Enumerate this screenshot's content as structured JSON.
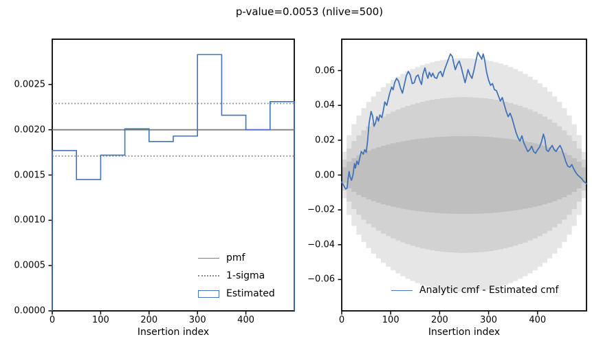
{
  "title": "p-value=0.0053 (nlive=500)",
  "colors": {
    "line_blue": "#4273b8",
    "pmf_gray": "#7f7f7f",
    "sigma_dotted_gray": "#8a8a8a",
    "band_1sigma": "#bfbfbf",
    "band_2sigma": "#d2d2d2",
    "band_3sigma": "#e6e6e6",
    "spine_black": "#000000"
  },
  "chart_data": [
    {
      "type": "bar",
      "subtype": "step-histogram",
      "title": "",
      "xlabel": "Insertion index",
      "ylabel": "",
      "xlim": [
        0,
        500
      ],
      "ylim": [
        0,
        0.003
      ],
      "grid": false,
      "xticks": [
        0,
        100,
        200,
        300,
        400
      ],
      "ytick_values": [
        0,
        0.0005,
        0.001,
        0.0015,
        0.002,
        0.0025
      ],
      "ytick_labels": [
        "0.0000",
        "0.0005",
        "0.0010",
        "0.0015",
        "0.0020",
        "0.0025"
      ],
      "bin_edges": [
        0,
        50,
        100,
        150,
        200,
        250,
        300,
        350,
        400,
        450,
        500
      ],
      "bin_values": [
        0.00177,
        0.00145,
        0.00172,
        0.00201,
        0.00187,
        0.00193,
        0.00283,
        0.00216,
        0.002,
        0.00231
      ],
      "pmf_value": 0.002,
      "sigma_upper": 0.00229,
      "sigma_lower": 0.00171,
      "legend_position": "lower right",
      "legend": [
        {
          "label": "pmf",
          "style": "solid-gray"
        },
        {
          "label": "1-sigma",
          "style": "dotted-gray"
        },
        {
          "label": "Estimated",
          "style": "blue-rect"
        }
      ]
    },
    {
      "type": "line",
      "title": "",
      "xlabel": "Insertion index",
      "ylabel": "",
      "xlim": [
        0,
        500
      ],
      "ylim": [
        -0.078,
        0.078
      ],
      "grid": false,
      "xticks": [
        0,
        100,
        200,
        300,
        400
      ],
      "ytick_values": [
        -0.06,
        -0.04,
        -0.02,
        0.0,
        0.02,
        0.04,
        0.06
      ],
      "ytick_labels": [
        "−0.06",
        "−0.04",
        "−0.02",
        "0.00",
        "0.02",
        "0.04",
        "0.06"
      ],
      "bands": {
        "description": "stepped shaded sigma envelopes k*sqrt(t*(1-t)/nlive), t=x/500",
        "nlive": 500,
        "k_levels": [
          3,
          2,
          1
        ],
        "x_step": 10,
        "max_values": {
          "1sigma": 0.0224,
          "2sigma": 0.0447,
          "3sigma": 0.0671
        }
      },
      "legend_position": "lower center",
      "series": [
        {
          "name": "Analytic cmf - Estimated cmf",
          "points": [
            [
              0,
              -0.004
            ],
            [
              4,
              -0.006
            ],
            [
              8,
              -0.008
            ],
            [
              11,
              -0.0075
            ],
            [
              13,
              -0.002
            ],
            [
              15,
              0.002
            ],
            [
              17,
              -0.001
            ],
            [
              20,
              -0.003
            ],
            [
              23,
              0.0
            ],
            [
              26,
              0.0065
            ],
            [
              28,
              0.004
            ],
            [
              31,
              0.008
            ],
            [
              34,
              0.006
            ],
            [
              37,
              0.01
            ],
            [
              40,
              0.0135
            ],
            [
              44,
              0.012
            ],
            [
              47,
              0.0145
            ],
            [
              50,
              0.013
            ],
            [
              53,
              0.02
            ],
            [
              56,
              0.03
            ],
            [
              60,
              0.0365
            ],
            [
              63,
              0.034
            ],
            [
              66,
              0.028
            ],
            [
              69,
              0.03
            ],
            [
              72,
              0.0335
            ],
            [
              75,
              0.031
            ],
            [
              78,
              0.0345
            ],
            [
              82,
              0.033
            ],
            [
              85,
              0.037
            ],
            [
              88,
              0.042
            ],
            [
              92,
              0.04
            ],
            [
              95,
              0.0435
            ],
            [
              98,
              0.047
            ],
            [
              102,
              0.0505
            ],
            [
              105,
              0.049
            ],
            [
              108,
              0.053
            ],
            [
              112,
              0.0555
            ],
            [
              116,
              0.054
            ],
            [
              120,
              0.05
            ],
            [
              124,
              0.047
            ],
            [
              128,
              0.052
            ],
            [
              132,
              0.057
            ],
            [
              136,
              0.0595
            ],
            [
              140,
              0.0575
            ],
            [
              144,
              0.0525
            ],
            [
              148,
              0.053
            ],
            [
              152,
              0.0565
            ],
            [
              156,
              0.0575
            ],
            [
              160,
              0.054
            ],
            [
              163,
              0.052
            ],
            [
              166,
              0.058
            ],
            [
              170,
              0.0615
            ],
            [
              173,
              0.058
            ],
            [
              176,
              0.0555
            ],
            [
              179,
              0.059
            ],
            [
              183,
              0.0565
            ],
            [
              186,
              0.0585
            ],
            [
              190,
              0.056
            ],
            [
              194,
              0.0555
            ],
            [
              198,
              0.0585
            ],
            [
              202,
              0.0595
            ],
            [
              206,
              0.0565
            ],
            [
              210,
              0.0605
            ],
            [
              214,
              0.0635
            ],
            [
              218,
              0.0665
            ],
            [
              222,
              0.0695
            ],
            [
              226,
              0.068
            ],
            [
              229,
              0.064
            ],
            [
              232,
              0.0605
            ],
            [
              236,
              0.0635
            ],
            [
              240,
              0.0655
            ],
            [
              244,
              0.062
            ],
            [
              248,
              0.0575
            ],
            [
              252,
              0.053
            ],
            [
              255,
              0.0565
            ],
            [
              258,
              0.0605
            ],
            [
              262,
              0.0575
            ],
            [
              266,
              0.0555
            ],
            [
              270,
              0.06
            ],
            [
              274,
              0.0655
            ],
            [
              278,
              0.0705
            ],
            [
              286,
              0.0665
            ],
            [
              289,
              0.0695
            ],
            [
              292,
              0.066
            ],
            [
              296,
              0.059
            ],
            [
              300,
              0.0545
            ],
            [
              304,
              0.0515
            ],
            [
              308,
              0.0525
            ],
            [
              312,
              0.049
            ],
            [
              316,
              0.0485
            ],
            [
              320,
              0.0455
            ],
            [
              324,
              0.0425
            ],
            [
              328,
              0.0445
            ],
            [
              332,
              0.0405
            ],
            [
              336,
              0.0365
            ],
            [
              340,
              0.0335
            ],
            [
              344,
              0.0355
            ],
            [
              348,
              0.0325
            ],
            [
              352,
              0.0285
            ],
            [
              356,
              0.0245
            ],
            [
              360,
              0.0215
            ],
            [
              364,
              0.0195
            ],
            [
              368,
              0.0225
            ],
            [
              372,
              0.0185
            ],
            [
              376,
              0.016
            ],
            [
              380,
              0.0135
            ],
            [
              384,
              0.0145
            ],
            [
              388,
              0.0165
            ],
            [
              392,
              0.0135
            ],
            [
              396,
              0.0125
            ],
            [
              400,
              0.0145
            ],
            [
              404,
              0.016
            ],
            [
              408,
              0.019
            ],
            [
              412,
              0.0235
            ],
            [
              415,
              0.0205
            ],
            [
              418,
              0.0145
            ],
            [
              422,
              0.0135
            ],
            [
              426,
              0.0155
            ],
            [
              430,
              0.017
            ],
            [
              434,
              0.0145
            ],
            [
              438,
              0.0135
            ],
            [
              442,
              0.0155
            ],
            [
              446,
              0.017
            ],
            [
              450,
              0.0145
            ],
            [
              454,
              0.011
            ],
            [
              458,
              0.0075
            ],
            [
              462,
              0.005
            ],
            [
              466,
              0.0045
            ],
            [
              470,
              0.006
            ],
            [
              474,
              0.0035
            ],
            [
              478,
              0.0015
            ],
            [
              482,
              0.0
            ],
            [
              486,
              -0.001
            ],
            [
              490,
              -0.002
            ],
            [
              494,
              -0.0035
            ],
            [
              498,
              -0.0045
            ],
            [
              500,
              -0.005
            ]
          ]
        }
      ]
    }
  ]
}
